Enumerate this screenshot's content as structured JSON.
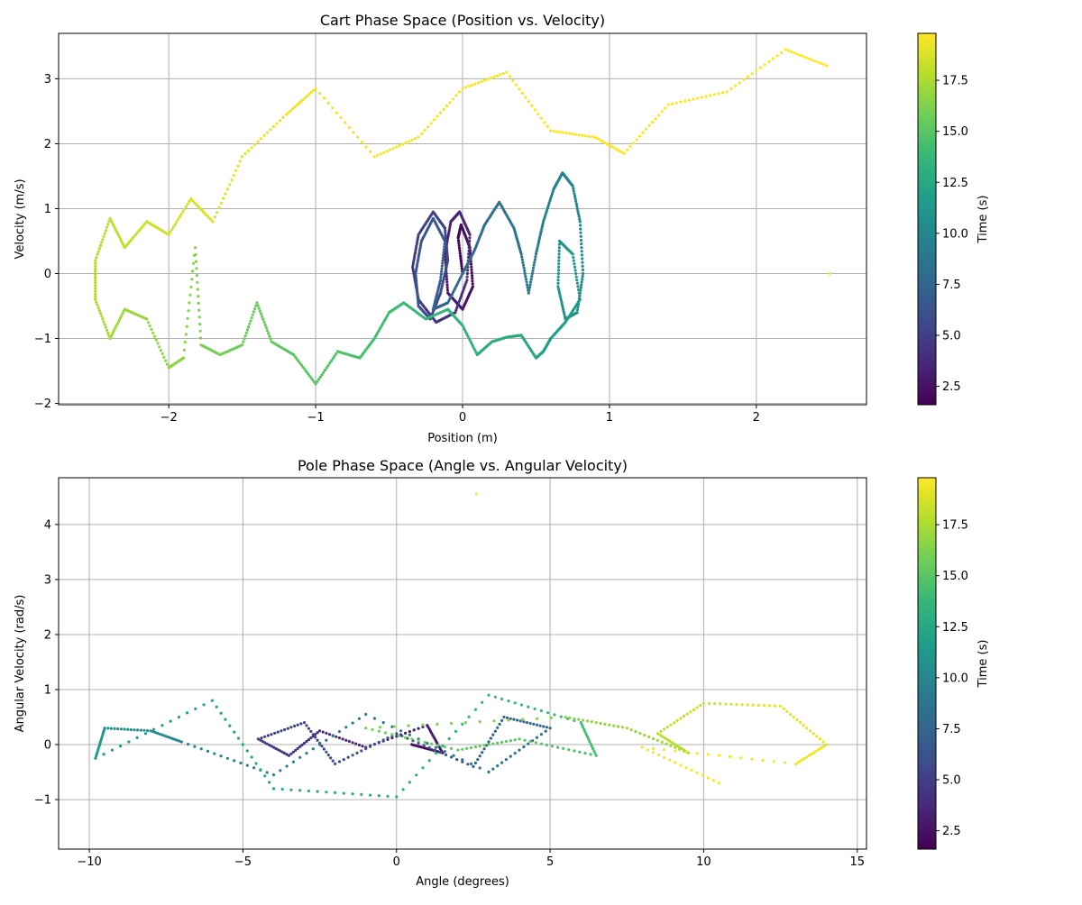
{
  "colorbar": {
    "label": "Time (s)",
    "range": [
      1.6,
      19.8
    ],
    "ticks": [
      2.5,
      5.0,
      7.5,
      10.0,
      12.5,
      15.0,
      17.5
    ],
    "tick_labels": [
      "2.5",
      "5.0",
      "7.5",
      "10.0",
      "12.5",
      "15.0",
      "17.5"
    ],
    "colormap": "viridis",
    "colormap_stops": [
      "#440154",
      "#482878",
      "#3e4a89",
      "#31688e",
      "#26828e",
      "#1f9e89",
      "#35b779",
      "#6ece58",
      "#b5de2b",
      "#fde725"
    ]
  },
  "chart_data": [
    {
      "type": "scatter",
      "title": "Cart Phase Space (Position vs. Velocity)",
      "xlabel": "Position (m)",
      "ylabel": "Velocity (m/s)",
      "xlim": [
        -2.75,
        2.75
      ],
      "ylim": [
        -2.02,
        3.7
      ],
      "xticks": [
        -2,
        -1,
        0,
        1,
        2
      ],
      "xtick_labels": [
        "−2",
        "−1",
        "0",
        "1",
        "2"
      ],
      "yticks": [
        -2,
        -1,
        0,
        1,
        2,
        3
      ],
      "ytick_labels": [
        "−2",
        "−1",
        "0",
        "1",
        "2",
        "3"
      ],
      "grid": true,
      "color_by": "time",
      "points": [
        [
          0.0,
          0.0,
          1.7
        ],
        [
          -0.03,
          0.55,
          1.9
        ],
        [
          -0.01,
          0.75,
          2.1
        ],
        [
          0.05,
          0.4,
          2.3
        ],
        [
          0.07,
          -0.2,
          2.5
        ],
        [
          0.0,
          -0.55,
          2.7
        ],
        [
          -0.1,
          -0.3,
          2.9
        ],
        [
          -0.12,
          0.3,
          3.1
        ],
        [
          -0.08,
          0.8,
          3.3
        ],
        [
          -0.02,
          0.95,
          3.5
        ],
        [
          0.05,
          0.6,
          3.7
        ],
        [
          0.03,
          -0.1,
          3.9
        ],
        [
          -0.05,
          -0.6,
          4.1
        ],
        [
          -0.18,
          -0.75,
          4.3
        ],
        [
          -0.3,
          -0.4,
          4.5
        ],
        [
          -0.34,
          0.1,
          4.7
        ],
        [
          -0.3,
          0.6,
          4.9
        ],
        [
          -0.2,
          0.95,
          5.1
        ],
        [
          -0.12,
          0.7,
          5.3
        ],
        [
          -0.1,
          0.2,
          5.5
        ],
        [
          -0.15,
          -0.3,
          5.7
        ],
        [
          -0.22,
          -0.7,
          5.9
        ],
        [
          -0.3,
          -0.5,
          6.1
        ],
        [
          -0.32,
          0.0,
          6.3
        ],
        [
          -0.28,
          0.5,
          6.5
        ],
        [
          -0.2,
          0.85,
          6.7
        ],
        [
          -0.12,
          0.5,
          6.9
        ],
        [
          -0.15,
          -0.1,
          7.1
        ],
        [
          -0.2,
          -0.55,
          7.3
        ],
        [
          -0.1,
          -0.45,
          7.5
        ],
        [
          0.0,
          0.0,
          7.7
        ],
        [
          0.08,
          0.35,
          7.9
        ],
        [
          0.15,
          0.75,
          8.1
        ],
        [
          0.25,
          1.1,
          8.3
        ],
        [
          0.35,
          0.7,
          8.5
        ],
        [
          0.4,
          0.3,
          8.7
        ],
        [
          0.45,
          -0.3,
          8.9
        ],
        [
          0.5,
          0.3,
          9.1
        ],
        [
          0.55,
          0.8,
          9.3
        ],
        [
          0.62,
          1.3,
          9.5
        ],
        [
          0.68,
          1.55,
          9.7
        ],
        [
          0.75,
          1.35,
          9.9
        ],
        [
          0.8,
          0.8,
          10.1
        ],
        [
          0.82,
          0.0,
          10.3
        ],
        [
          0.78,
          -0.6,
          10.5
        ],
        [
          0.7,
          -0.7,
          10.7
        ],
        [
          0.65,
          -0.2,
          10.9
        ],
        [
          0.66,
          0.5,
          11.1
        ],
        [
          0.75,
          0.3,
          11.3
        ],
        [
          0.8,
          -0.4,
          11.5
        ],
        [
          0.7,
          -0.75,
          11.7
        ],
        [
          0.6,
          -1.0,
          11.9
        ],
        [
          0.55,
          -1.2,
          12.1
        ],
        [
          0.5,
          -1.3,
          12.3
        ],
        [
          0.4,
          -0.95,
          12.5
        ],
        [
          0.3,
          -0.98,
          12.7
        ],
        [
          0.2,
          -1.05,
          12.9
        ],
        [
          0.1,
          -1.25,
          13.1
        ],
        [
          0.0,
          -0.8,
          13.3
        ],
        [
          -0.1,
          -0.55,
          13.5
        ],
        [
          -0.25,
          -0.7,
          13.7
        ],
        [
          -0.4,
          -0.45,
          13.9
        ],
        [
          -0.5,
          -0.6,
          14.1
        ],
        [
          -0.6,
          -1.0,
          14.3
        ],
        [
          -0.7,
          -1.3,
          14.5
        ],
        [
          -0.85,
          -1.2,
          14.7
        ],
        [
          -1.0,
          -1.7,
          14.9
        ],
        [
          -1.15,
          -1.25,
          15.1
        ],
        [
          -1.3,
          -1.05,
          15.3
        ],
        [
          -1.4,
          -0.45,
          15.5
        ],
        [
          -1.5,
          -1.1,
          15.7
        ],
        [
          -1.65,
          -1.25,
          15.9
        ],
        [
          -1.78,
          -1.1,
          16.1
        ],
        [
          -1.82,
          0.4,
          16.3
        ],
        [
          -1.9,
          -1.3,
          16.5
        ],
        [
          -2.0,
          -1.45,
          16.7
        ],
        [
          -2.15,
          -0.7,
          16.9
        ],
        [
          -2.3,
          -0.55,
          17.1
        ],
        [
          -2.4,
          -1.0,
          17.3
        ],
        [
          -2.5,
          -0.4,
          17.5
        ],
        [
          -2.5,
          0.2,
          17.7
        ],
        [
          -2.4,
          0.85,
          17.9
        ],
        [
          -2.3,
          0.4,
          18.1
        ],
        [
          -2.15,
          0.8,
          18.3
        ],
        [
          -2.0,
          0.6,
          18.5
        ],
        [
          -1.85,
          1.15,
          18.7
        ],
        [
          -1.7,
          0.8,
          18.9
        ],
        [
          -1.5,
          1.8,
          19.1
        ],
        [
          -1.2,
          2.45,
          19.3
        ],
        [
          -1.0,
          2.85,
          19.4
        ],
        [
          -0.6,
          1.8,
          19.5
        ],
        [
          -0.3,
          2.1,
          19.55
        ],
        [
          0.0,
          2.85,
          19.6
        ],
        [
          0.3,
          3.1,
          19.65
        ],
        [
          0.6,
          2.2,
          19.7
        ],
        [
          0.9,
          2.1,
          19.72
        ],
        [
          1.1,
          1.85,
          19.74
        ],
        [
          1.4,
          2.6,
          19.76
        ],
        [
          1.8,
          2.8,
          19.78
        ],
        [
          2.2,
          3.45,
          19.8
        ],
        [
          2.48,
          3.2,
          19.8
        ],
        [
          2.5,
          0.0,
          19.8
        ]
      ]
    },
    {
      "type": "scatter",
      "title": "Pole Phase Space (Angle vs. Angular Velocity)",
      "xlabel": "Angle (degrees)",
      "ylabel": "Angular Velocity (rad/s)",
      "xlim": [
        -11.0,
        15.3
      ],
      "ylim": [
        -1.9,
        4.85
      ],
      "xticks": [
        -10,
        -5,
        0,
        5,
        10,
        15
      ],
      "xtick_labels": [
        "−10",
        "−5",
        "0",
        "5",
        "10",
        "15"
      ],
      "yticks": [
        -1,
        0,
        1,
        2,
        3,
        4
      ],
      "ytick_labels": [
        "−1",
        "0",
        "1",
        "2",
        "3",
        "4"
      ],
      "grid": true,
      "color_by": "time",
      "points": [
        [
          0.5,
          0.0,
          2.0
        ],
        [
          1.5,
          -0.15,
          2.5
        ],
        [
          1.0,
          0.35,
          3.0
        ],
        [
          -1.0,
          -0.05,
          3.5
        ],
        [
          -2.5,
          0.25,
          4.0
        ],
        [
          -3.5,
          -0.2,
          4.5
        ],
        [
          -4.5,
          0.1,
          5.0
        ],
        [
          -3.0,
          0.4,
          5.5
        ],
        [
          -2.0,
          -0.35,
          6.0
        ],
        [
          0.0,
          0.2,
          6.5
        ],
        [
          2.5,
          -0.4,
          7.0
        ],
        [
          3.5,
          0.5,
          7.5
        ],
        [
          5.0,
          0.3,
          8.0
        ],
        [
          3.0,
          -0.5,
          8.5
        ],
        [
          -1.0,
          0.55,
          9.0
        ],
        [
          -4.0,
          -0.55,
          9.5
        ],
        [
          -7.0,
          0.05,
          10.0
        ],
        [
          -8.0,
          0.25,
          10.5
        ],
        [
          -9.5,
          0.3,
          11.0
        ],
        [
          -9.8,
          -0.25,
          11.5
        ],
        [
          -6.0,
          0.8,
          12.0
        ],
        [
          -4.0,
          -0.8,
          12.5
        ],
        [
          0.0,
          -0.95,
          13.0
        ],
        [
          3.0,
          0.9,
          13.5
        ],
        [
          6.0,
          0.4,
          14.0
        ],
        [
          6.5,
          -0.2,
          14.5
        ],
        [
          4.0,
          0.1,
          15.0
        ],
        [
          2.0,
          -0.1,
          15.5
        ],
        [
          -1.0,
          0.3,
          16.0
        ],
        [
          5.5,
          0.5,
          16.5
        ],
        [
          7.5,
          0.3,
          17.0
        ],
        [
          9.5,
          -0.15,
          17.5
        ],
        [
          8.5,
          0.2,
          18.0
        ],
        [
          10.0,
          0.75,
          18.5
        ],
        [
          12.5,
          0.7,
          19.0
        ],
        [
          14.0,
          0.0,
          19.3
        ],
        [
          13.0,
          -0.35,
          19.5
        ],
        [
          8.0,
          -0.05,
          19.6
        ],
        [
          10.5,
          -0.7,
          19.7
        ],
        [
          2.6,
          4.55,
          19.8
        ]
      ]
    }
  ]
}
